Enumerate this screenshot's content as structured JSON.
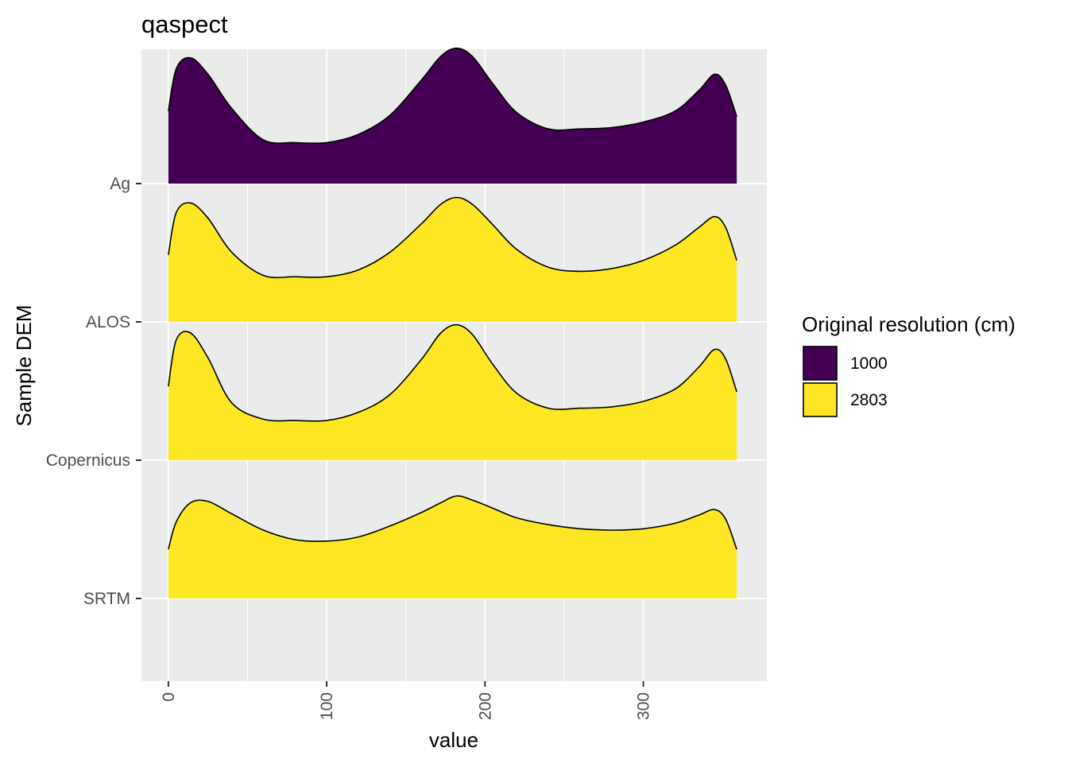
{
  "chart_data": {
    "type": "ridgeline",
    "title": "qaspect",
    "xlabel": "value",
    "ylabel": "Sample DEM",
    "xlim": [
      -17,
      378
    ],
    "x_ticks": [
      0,
      100,
      200,
      300
    ],
    "categories": [
      "SRTM",
      "Copernicus",
      "ALOS",
      "Ag"
    ],
    "legend": {
      "title": "Original resolution (cm)",
      "position": "right",
      "entries": [
        {
          "label": "1000",
          "color": "#440154"
        },
        {
          "label": "2803",
          "color": "#FDE725"
        }
      ]
    },
    "x": [
      0,
      5,
      14,
      25,
      40,
      60,
      80,
      100,
      120,
      140,
      160,
      172,
      182,
      192,
      205,
      220,
      240,
      260,
      280,
      300,
      320,
      335,
      345,
      352,
      359
    ],
    "series": [
      {
        "name": "Ag",
        "group": "1000",
        "color": "#440154",
        "density": [
          0.53,
          0.84,
          0.92,
          0.8,
          0.55,
          0.32,
          0.3,
          0.3,
          0.36,
          0.5,
          0.76,
          0.93,
          0.99,
          0.93,
          0.73,
          0.52,
          0.4,
          0.4,
          0.41,
          0.45,
          0.53,
          0.68,
          0.8,
          0.72,
          0.49
        ]
      },
      {
        "name": "ALOS",
        "group": "2803",
        "color": "#FDE725",
        "density": [
          0.49,
          0.8,
          0.87,
          0.76,
          0.51,
          0.34,
          0.33,
          0.33,
          0.38,
          0.51,
          0.72,
          0.86,
          0.91,
          0.86,
          0.71,
          0.53,
          0.4,
          0.37,
          0.39,
          0.45,
          0.56,
          0.69,
          0.77,
          0.69,
          0.45
        ]
      },
      {
        "name": "Copernicus",
        "group": "2803",
        "color": "#FDE725",
        "density": [
          0.54,
          0.88,
          0.93,
          0.75,
          0.42,
          0.3,
          0.29,
          0.29,
          0.35,
          0.48,
          0.74,
          0.93,
          0.99,
          0.92,
          0.7,
          0.49,
          0.38,
          0.38,
          0.39,
          0.43,
          0.52,
          0.68,
          0.81,
          0.74,
          0.5
        ]
      },
      {
        "name": "SRTM",
        "group": "2803",
        "color": "#FDE725",
        "density": [
          0.36,
          0.56,
          0.7,
          0.71,
          0.62,
          0.5,
          0.43,
          0.42,
          0.45,
          0.53,
          0.63,
          0.7,
          0.75,
          0.72,
          0.66,
          0.59,
          0.54,
          0.51,
          0.5,
          0.51,
          0.55,
          0.61,
          0.65,
          0.58,
          0.36
        ]
      }
    ]
  }
}
